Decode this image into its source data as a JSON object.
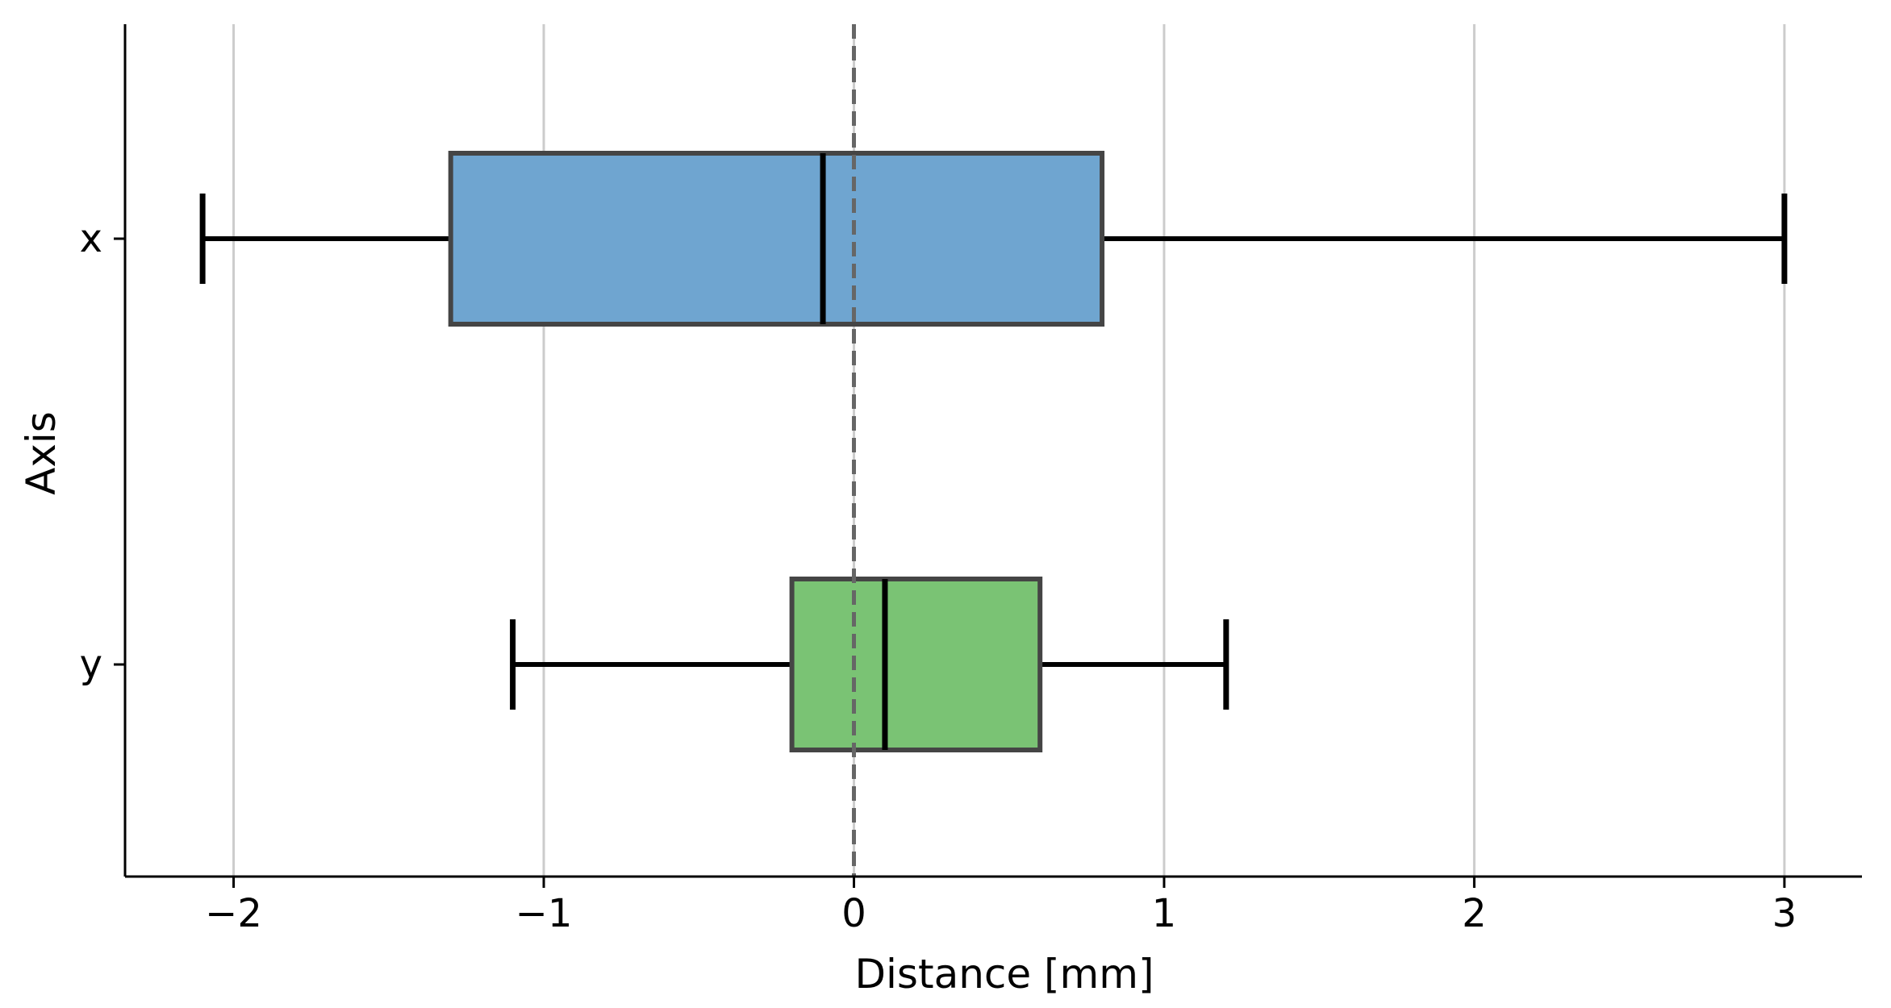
{
  "chart_data": {
    "type": "boxplot",
    "orientation": "horizontal",
    "xlabel": "Distance [mm]",
    "ylabel": "Axis",
    "xlim": [
      -2.35,
      3.25
    ],
    "x_ticks": [
      -2,
      -1,
      0,
      1,
      2,
      3
    ],
    "x_tick_labels": [
      "−2",
      "−1",
      "0",
      "1",
      "2",
      "3"
    ],
    "grid": "vertical",
    "reference_line": {
      "x": 0,
      "style": "dashed",
      "color": "#666666"
    },
    "categories": [
      "x",
      "y"
    ],
    "boxes": [
      {
        "category": "x",
        "whisker_low": -2.1,
        "q1": -1.3,
        "median": -0.1,
        "q3": 0.8,
        "whisker_high": 3.0,
        "color": "#6fa5d0"
      },
      {
        "category": "y",
        "whisker_low": -1.1,
        "q1": -0.2,
        "median": 0.1,
        "q3": 0.6,
        "whisker_high": 1.2,
        "color": "#7ac374"
      }
    ]
  }
}
